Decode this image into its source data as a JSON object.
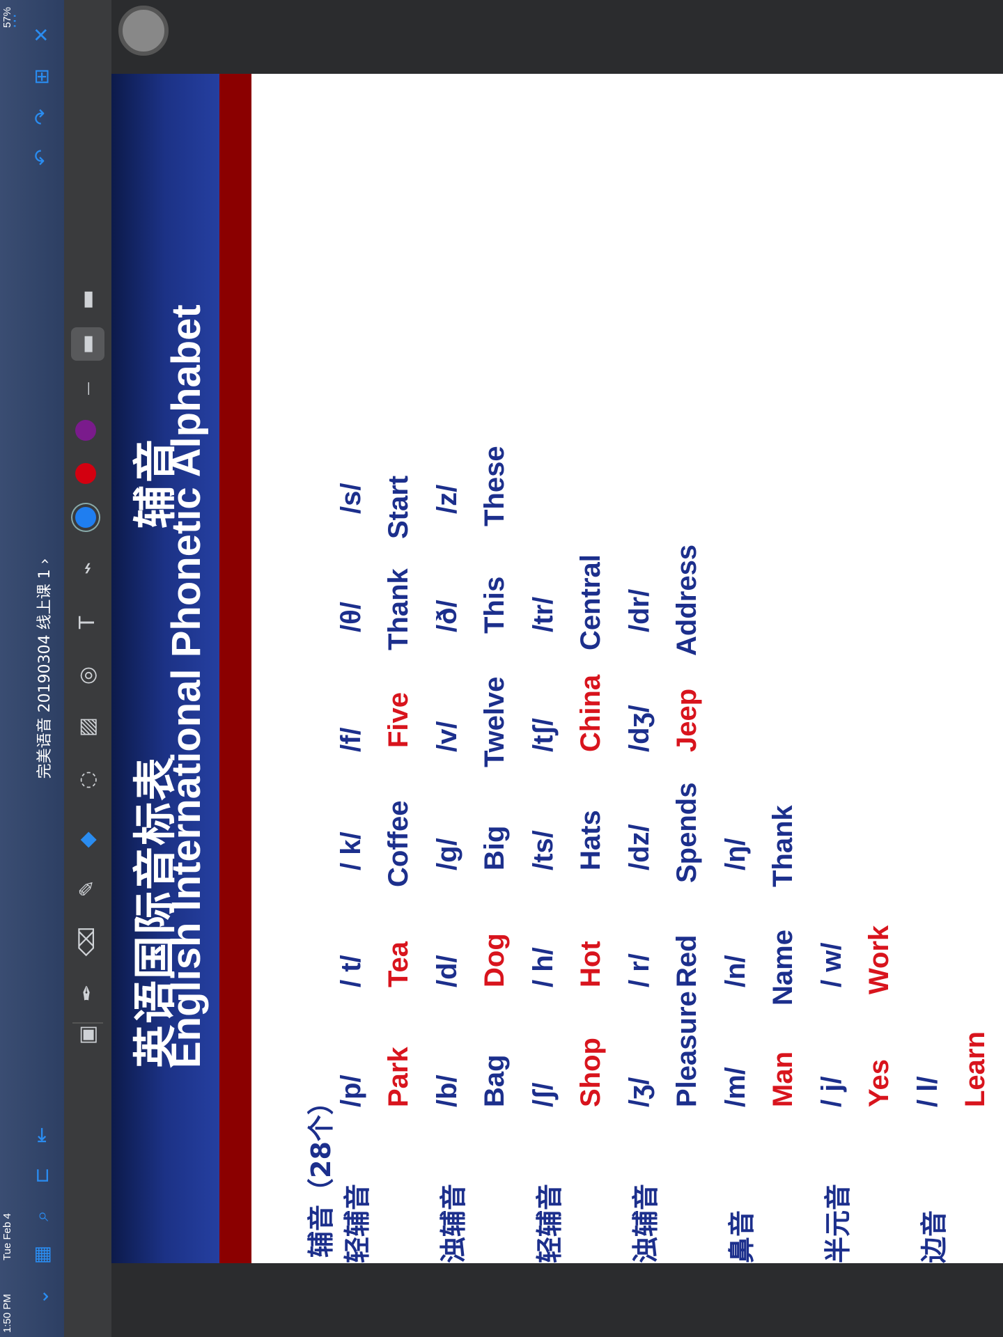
{
  "status": {
    "time": "1:50 PM",
    "date": "Tue Feb 4",
    "battery": "57%"
  },
  "document": {
    "title": "完美语音 20190304 线上课 1 ›"
  },
  "slide": {
    "title_cn": "英语国际音标表",
    "title_cn_right": "辅音",
    "title_en": "English International Phonetic Alphabet",
    "section_label": "辅音（28个）",
    "groups": [
      {
        "label": "轻辅音",
        "symbols": [
          "/p/",
          "/ t/",
          "/ k/",
          "/f/",
          "/θ/",
          "/s/"
        ],
        "words": [
          [
            "",
            "Park"
          ],
          [
            "T",
            "ea",
            "Tea"
          ],
          [
            "C",
            "offee"
          ],
          [
            "F",
            "ive"
          ],
          [
            "Th",
            "ank"
          ],
          [
            "S",
            "tart"
          ]
        ]
      },
      {
        "label": "浊辅音",
        "symbols": [
          "/b/",
          "/d/",
          "/g/",
          "/v/",
          "/ð/",
          "/z/"
        ]
      },
      {
        "label": "轻辅音",
        "symbols": [
          "/ʃ/",
          "/ h/",
          "/ts/",
          "/tʃ/",
          "/tr/"
        ]
      },
      {
        "label": "浊辅音",
        "symbols": [
          "/ʒ/",
          "/ r/",
          "/dz/",
          "/dʒ/",
          "/dr/"
        ]
      },
      {
        "label": "鼻音",
        "symbols": [
          "/m/",
          "/n/",
          "/ŋ/"
        ]
      },
      {
        "label": "半元音",
        "symbols": [
          "/ j/",
          "/ w/"
        ]
      },
      {
        "label": "边音",
        "symbols": [
          "/ l/"
        ]
      }
    ],
    "words": {
      "row1": [
        "Park",
        "Tea",
        "Coffee",
        "Five",
        "Thank",
        "Start"
      ],
      "row2": [
        "Bag",
        "Dog",
        "Big",
        "Twelve",
        "This",
        "These"
      ],
      "row3": [
        "Shop",
        "Hot",
        "Hats",
        "China",
        "Central"
      ],
      "row4": [
        "Pleasure",
        "Red",
        "Spends",
        "Jeep",
        "Address"
      ],
      "row5": [
        "Man",
        "Name",
        "Thank"
      ],
      "row6": [
        "Yes",
        "Work"
      ],
      "row7": [
        "Learn"
      ]
    }
  },
  "colors": {
    "accent_blue": "#1c2f8c",
    "accent_red": "#d8141d",
    "header_dark": "#0c1a4a",
    "red_bar": "#8b0000"
  }
}
